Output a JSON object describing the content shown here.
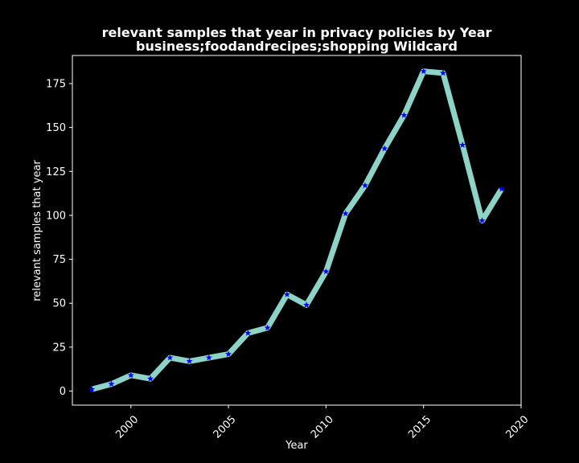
{
  "chart_data": {
    "type": "line",
    "title": "relevant samples that year in privacy policies by Year",
    "subtitle": "business;foodandrecipes;shopping Wildcard",
    "xlabel": "Year",
    "ylabel": "relevant samples that year",
    "xlim": [
      1997.0,
      2020.0
    ],
    "ylim": [
      -8,
      191
    ],
    "x_ticks": [
      2000,
      2005,
      2010,
      2015,
      2020
    ],
    "y_ticks": [
      0,
      25,
      50,
      75,
      100,
      125,
      150,
      175
    ],
    "x": [
      1998,
      1999,
      2000,
      2001,
      2002,
      2003,
      2004,
      2005,
      2006,
      2007,
      2008,
      2009,
      2010,
      2011,
      2012,
      2013,
      2014,
      2015,
      2016,
      2017,
      2018,
      2019
    ],
    "series": [
      {
        "values": [
          1,
          4,
          9,
          7,
          19,
          17,
          19,
          21,
          33,
          36,
          55,
          49,
          68,
          101,
          117,
          138,
          157,
          182,
          181,
          140,
          97,
          115
        ],
        "line_color": "#8dd3c7",
        "marker_color": "#0000ff",
        "marker": "star"
      }
    ],
    "grid": false,
    "background": "#000000"
  }
}
